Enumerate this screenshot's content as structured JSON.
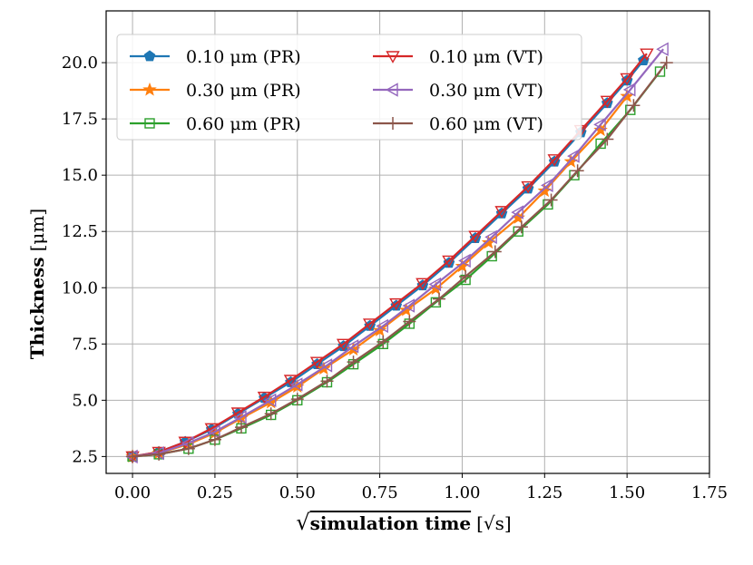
{
  "chart_data": {
    "type": "line",
    "title": "",
    "xlabel": {
      "radical": "√",
      "main": "simulation time",
      "unit": "[√s]"
    },
    "ylabel": {
      "main": "Thickness",
      "unit": "[μm]"
    },
    "xlim": [
      -0.08,
      1.75
    ],
    "ylim": [
      1.75,
      22.3
    ],
    "xticks": [
      "0.00",
      "0.25",
      "0.50",
      "0.75",
      "1.00",
      "1.25",
      "1.50",
      "1.75"
    ],
    "yticks": [
      "2.5",
      "5.0",
      "7.5",
      "10.0",
      "12.5",
      "15.0",
      "17.5",
      "20.0"
    ],
    "grid": true,
    "legend_position": "top-left",
    "series": [
      {
        "name": "0.10 μm (PR)",
        "color": "#1f77b4",
        "marker": "pentagon",
        "x": [
          0.0,
          0.08,
          0.16,
          0.24,
          0.32,
          0.4,
          0.48,
          0.56,
          0.64,
          0.72,
          0.8,
          0.88,
          0.96,
          1.04,
          1.12,
          1.2,
          1.28,
          1.36,
          1.44,
          1.5,
          1.55
        ],
        "y": [
          2.5,
          2.7,
          3.15,
          3.7,
          4.4,
          5.1,
          5.8,
          6.6,
          7.4,
          8.3,
          9.2,
          10.1,
          11.1,
          12.2,
          13.3,
          14.4,
          15.6,
          16.9,
          18.2,
          19.2,
          20.1
        ]
      },
      {
        "name": "0.30 μm (PR)",
        "color": "#ff7f0e",
        "marker": "star",
        "x": [
          0.0,
          0.08,
          0.17,
          0.25,
          0.33,
          0.42,
          0.5,
          0.58,
          0.67,
          0.75,
          0.83,
          0.92,
          1.0,
          1.08,
          1.17,
          1.25,
          1.33,
          1.42,
          1.5
        ],
        "y": [
          2.5,
          2.65,
          3.05,
          3.55,
          4.2,
          4.9,
          5.6,
          6.4,
          7.25,
          8.1,
          9.0,
          9.95,
          10.95,
          12.0,
          13.1,
          14.3,
          15.6,
          17.0,
          18.5
        ]
      },
      {
        "name": "0.60 μm (PR)",
        "color": "#2ca02c",
        "marker": "square-open",
        "x": [
          0.0,
          0.08,
          0.17,
          0.25,
          0.33,
          0.42,
          0.5,
          0.59,
          0.67,
          0.76,
          0.84,
          0.92,
          1.01,
          1.09,
          1.17,
          1.26,
          1.34,
          1.42,
          1.51,
          1.6
        ],
        "y": [
          2.5,
          2.6,
          2.85,
          3.25,
          3.75,
          4.35,
          5.0,
          5.8,
          6.6,
          7.5,
          8.4,
          9.35,
          10.35,
          11.4,
          12.5,
          13.7,
          15.0,
          16.4,
          17.9,
          19.6
        ]
      },
      {
        "name": "0.10 μm (VT)",
        "color": "#d62728",
        "marker": "triangle-down-open",
        "x": [
          0.0,
          0.08,
          0.16,
          0.24,
          0.32,
          0.4,
          0.48,
          0.56,
          0.64,
          0.72,
          0.8,
          0.88,
          0.96,
          1.04,
          1.12,
          1.2,
          1.28,
          1.36,
          1.44,
          1.5,
          1.56
        ],
        "y": [
          2.5,
          2.7,
          3.15,
          3.75,
          4.45,
          5.15,
          5.9,
          6.7,
          7.5,
          8.4,
          9.3,
          10.2,
          11.2,
          12.3,
          13.4,
          14.5,
          15.7,
          17.0,
          18.3,
          19.3,
          20.4
        ]
      },
      {
        "name": "0.30 μm (VT)",
        "color": "#9467bd",
        "marker": "triangle-left-open",
        "x": [
          0.0,
          0.08,
          0.17,
          0.25,
          0.33,
          0.42,
          0.5,
          0.59,
          0.67,
          0.76,
          0.84,
          0.92,
          1.01,
          1.09,
          1.17,
          1.26,
          1.34,
          1.42,
          1.51,
          1.61
        ],
        "y": [
          2.5,
          2.65,
          3.1,
          3.6,
          4.25,
          5.0,
          5.7,
          6.55,
          7.4,
          8.3,
          9.2,
          10.15,
          11.2,
          12.25,
          13.35,
          14.55,
          15.85,
          17.25,
          18.8,
          20.6
        ]
      },
      {
        "name": "0.60 μm (VT)",
        "color": "#8c564b",
        "marker": "plus",
        "x": [
          0.0,
          0.08,
          0.17,
          0.25,
          0.33,
          0.42,
          0.5,
          0.59,
          0.67,
          0.76,
          0.84,
          0.93,
          1.01,
          1.1,
          1.18,
          1.27,
          1.35,
          1.44,
          1.52,
          1.62
        ],
        "y": [
          2.5,
          2.6,
          2.85,
          3.25,
          3.8,
          4.4,
          5.05,
          5.85,
          6.7,
          7.6,
          8.5,
          9.5,
          10.5,
          11.6,
          12.7,
          13.9,
          15.2,
          16.6,
          18.1,
          20.0
        ]
      }
    ]
  }
}
